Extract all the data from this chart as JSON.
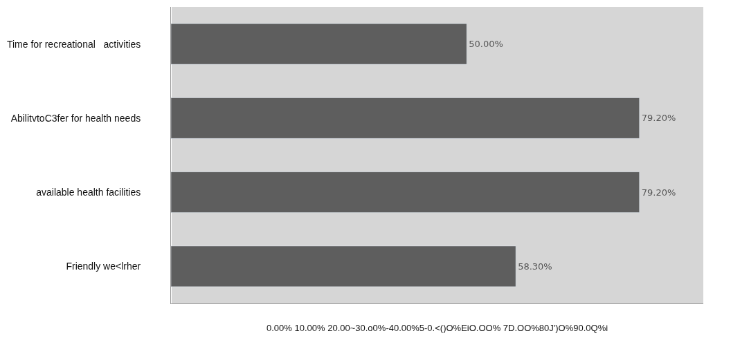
{
  "chart_data": {
    "type": "bar",
    "orientation": "horizontal",
    "categories": [
      "Time for recreational   activities",
      "AbilitvtoC3fer for health needs",
      "available health facilities",
      "Friendly we<lrher"
    ],
    "values": [
      50.0,
      79.2,
      79.2,
      58.3
    ],
    "value_labels": [
      "50.00%",
      "79.20%",
      "79.20%",
      "58.30%"
    ],
    "color": "#5e5e5e",
    "xlim": [
      0,
      90
    ],
    "tick_labels": "y",
    "annotations": [
      "0.00% 10.00% 20.00~30.o0%-40.00%5-0.<()O%EiO.OO% 7D.OO%80J')O%90.0Q%i"
    ],
    "grid": false,
    "legend": false
  }
}
